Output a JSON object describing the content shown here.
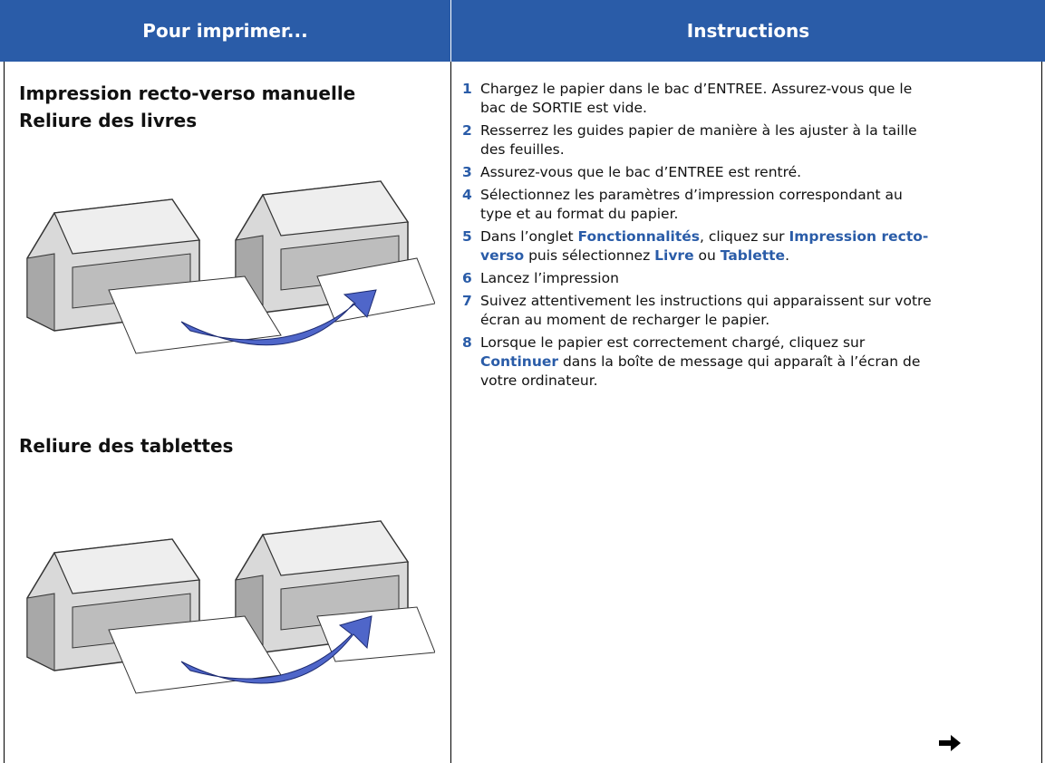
{
  "header": {
    "col1": "Pour imprimer...",
    "col2": "Instructions"
  },
  "left": {
    "headings": [
      "Impression recto-verso manuelle",
      "Reliure des livres"
    ],
    "section2": "Reliure des tablettes"
  },
  "steps": [
    {
      "number": 1,
      "segments": [
        {
          "text": "Chargez le papier dans le bac d’ENTREE. Assurez-vous que le bac de SORTIE est vide."
        }
      ]
    },
    {
      "number": 2,
      "segments": [
        {
          "text": "Resserrez les guides papier de manière à les ajuster à la taille des feuilles."
        }
      ]
    },
    {
      "number": 3,
      "segments": [
        {
          "text": "Assurez-vous que le bac d’ENTREE est rentré."
        }
      ]
    },
    {
      "number": 4,
      "segments": [
        {
          "text": "Sélectionnez les paramètres d’impression correspondant au type et au format du papier."
        }
      ]
    },
    {
      "number": 5,
      "segments": [
        {
          "text": "Dans l’onglet "
        },
        {
          "text": "Fonctionnalités",
          "highlight": true
        },
        {
          "text": ", cliquez sur "
        },
        {
          "text": "Impression recto-verso",
          "highlight": true
        },
        {
          "text": " puis sélectionnez "
        },
        {
          "text": "Livre",
          "highlight": true
        },
        {
          "text": " ou "
        },
        {
          "text": "Tablette",
          "highlight": true
        },
        {
          "text": "."
        }
      ]
    },
    {
      "number": 6,
      "segments": [
        {
          "text": "Lancez l’impression"
        }
      ]
    },
    {
      "number": 7,
      "segments": [
        {
          "text": "Suivez attentivement les instructions qui apparaissent sur votre écran au moment de recharger le papier."
        }
      ]
    },
    {
      "number": 8,
      "segments": [
        {
          "text": "Lorsque le papier est correctement chargé, cliquez sur "
        },
        {
          "text": "Continuer",
          "highlight": true
        },
        {
          "text": " dans la boîte de message qui apparaît à l’écran de votre ordinateur."
        }
      ]
    }
  ]
}
